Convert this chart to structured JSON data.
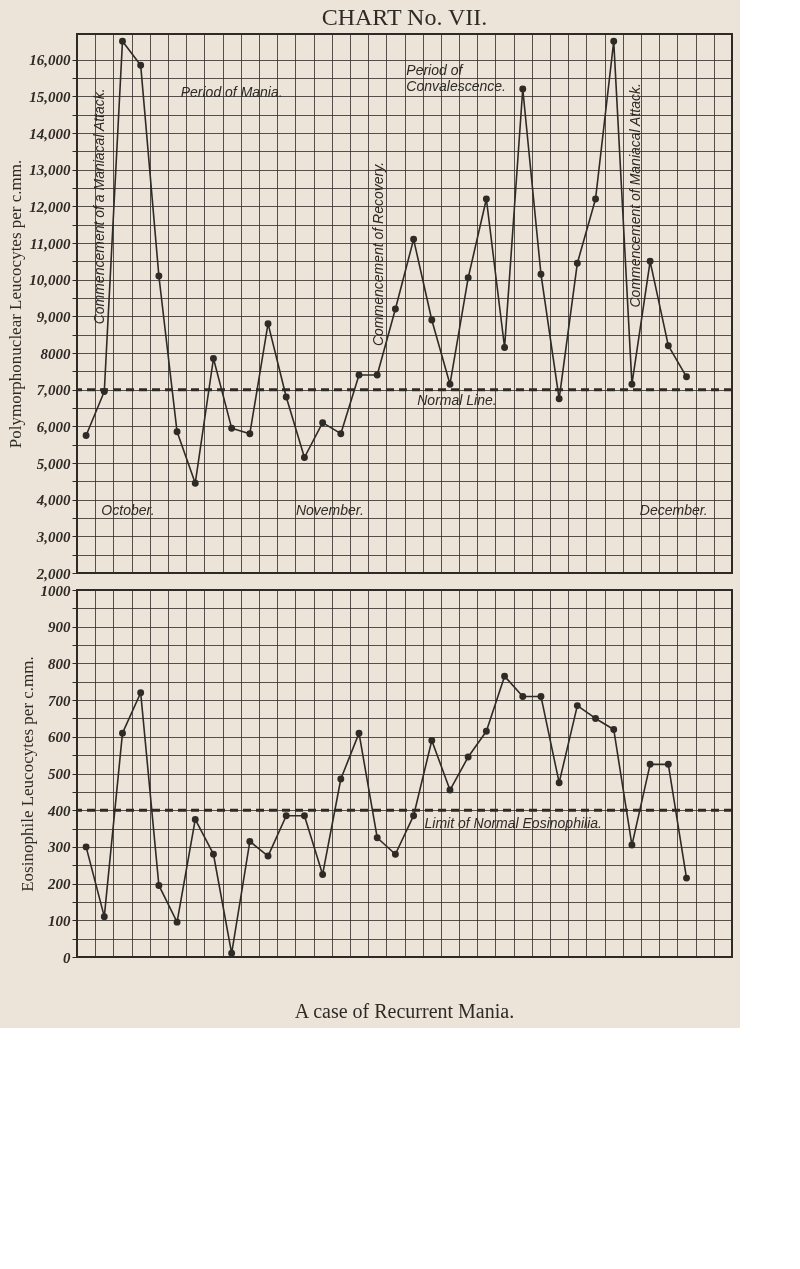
{
  "chart_data": [
    {
      "type": "line",
      "title": "CHART No. VII.",
      "ylabel": "Polymorphonuclear Leucocytes per c.mm.",
      "categories": [
        null,
        null,
        null,
        null,
        null,
        null,
        null,
        null,
        null,
        null,
        null,
        null,
        null,
        null,
        null,
        null,
        null,
        null,
        null,
        null,
        null,
        null,
        null,
        null,
        null,
        null,
        null,
        null,
        null,
        null,
        null,
        null,
        null,
        null,
        null,
        null
      ],
      "series": [
        {
          "color": "#2e2a26",
          "values": [
            5750,
            6950,
            16500,
            15850,
            10100,
            5850,
            4450,
            7850,
            5950,
            5800,
            8800,
            6800,
            5150,
            6100,
            5800,
            7400,
            7400,
            9200,
            11100,
            8900,
            7150,
            10050,
            12200,
            8150,
            15200,
            10150,
            6750,
            10450,
            12200,
            16500,
            7150,
            10500,
            8200,
            7350,
            null,
            null
          ]
        }
      ],
      "ylim": [
        2000,
        16700
      ],
      "yticks": [
        {
          "value": 2000,
          "label": "2,000"
        },
        {
          "value": 2500,
          "label": null
        },
        {
          "value": 3000,
          "label": "3,000"
        },
        {
          "value": 3500,
          "label": null
        },
        {
          "value": 4000,
          "label": "4,000"
        },
        {
          "value": 4500,
          "label": null
        },
        {
          "value": 5000,
          "label": "5,000"
        },
        {
          "value": 5500,
          "label": null
        },
        {
          "value": 6000,
          "label": "6,000"
        },
        {
          "value": 6500,
          "label": null
        },
        {
          "value": 7000,
          "label": "7,000"
        },
        {
          "value": 7500,
          "label": null
        },
        8000,
        {
          "value": 8500,
          "label": null
        },
        {
          "value": 9000,
          "label": "9,000"
        },
        {
          "value": 9500,
          "label": null
        },
        {
          "value": 10000,
          "label": "10,000"
        },
        {
          "value": 10500,
          "label": null
        },
        {
          "value": 11000,
          "label": "11,000"
        },
        {
          "value": 11500,
          "label": null
        },
        {
          "value": 12000,
          "label": "12,000"
        },
        {
          "value": 12500,
          "label": null
        },
        {
          "value": 13000,
          "label": "13,000"
        },
        {
          "value": 13500,
          "label": null
        },
        {
          "value": 14000,
          "label": "14,000"
        },
        {
          "value": 14500,
          "label": null
        },
        {
          "value": 15000,
          "label": "15,000"
        },
        {
          "value": 15500,
          "label": null
        },
        {
          "value": 16000,
          "label": "16,000"
        }
      ],
      "ref_lines": [
        {
          "axis": "y",
          "value": 7000,
          "label": "Normal Line.",
          "line_style": "dashed"
        }
      ],
      "annotations": [
        "Period of Mania.",
        "Period of\nConvalescence.",
        "Commencement of a Maniacal Attack.",
        "Commencement of Recovery.",
        "Commencement of Maniacal Attack.",
        "October.",
        "November.",
        "December."
      ],
      "grid": true,
      "marker": "circle",
      "line_style": "solid",
      "tick_labels": "y"
    },
    {
      "type": "line",
      "ylabel": "Eosinophile Leucocytes per c.mm.",
      "categories": [
        null,
        null,
        null,
        null,
        null,
        null,
        null,
        null,
        null,
        null,
        null,
        null,
        null,
        null,
        null,
        null,
        null,
        null,
        null,
        null,
        null,
        null,
        null,
        null,
        null,
        null,
        null,
        null,
        null,
        null,
        null,
        null,
        null,
        null,
        null,
        null
      ],
      "series": [
        {
          "color": "#2e2a26",
          "values": [
            300,
            110,
            610,
            720,
            195,
            95,
            375,
            280,
            10,
            315,
            275,
            385,
            385,
            225,
            485,
            610,
            325,
            280,
            385,
            590,
            455,
            545,
            615,
            765,
            710,
            710,
            475,
            685,
            650,
            620,
            305,
            525,
            525,
            215,
            null,
            null
          ]
        }
      ],
      "ylim": [
        0,
        1000
      ],
      "yticks": [
        0,
        {
          "value": 50,
          "label": null
        },
        100,
        {
          "value": 150,
          "label": null
        },
        200,
        {
          "value": 250,
          "label": null
        },
        300,
        {
          "value": 350,
          "label": null
        },
        400,
        {
          "value": 450,
          "label": null
        },
        500,
        {
          "value": 550,
          "label": null
        },
        600,
        {
          "value": 650,
          "label": null
        },
        700,
        {
          "value": 750,
          "label": null
        },
        800,
        {
          "value": 850,
          "label": null
        },
        900,
        {
          "value": 950,
          "label": null
        },
        1000
      ],
      "ref_lines": [
        {
          "axis": "y",
          "value": 400,
          "label": "Limit of Normal Eosinophilia.",
          "line_style": "dashed"
        }
      ],
      "annotations": [
        "A case of Recurrent Mania."
      ],
      "grid": true,
      "marker": "circle",
      "line_style": "solid",
      "tick_labels": "y"
    }
  ]
}
